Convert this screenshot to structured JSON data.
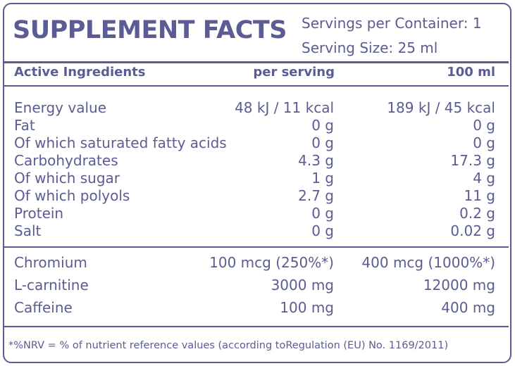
{
  "header": {
    "title": "SUPPLEMENT FACTS",
    "servings_per_container": "Servings per Container: 1",
    "serving_size": "Serving Size: 25 ml"
  },
  "table": {
    "columns": [
      "Active Ingredients",
      "per serving",
      "100 ml"
    ],
    "nutrition_rows": [
      [
        "Energy value",
        "48 kJ / 11 kcal",
        "189 kJ / 45 kcal"
      ],
      [
        "Fat",
        "0 g",
        "0 g"
      ],
      [
        "Of which saturated fatty acids",
        "0 g",
        "0 g"
      ],
      [
        "Carbohydrates",
        "4.3 g",
        "17.3 g"
      ],
      [
        "Of which sugar",
        "1 g",
        "4 g"
      ],
      [
        "Of which polyols",
        "2.7 g",
        "11 g"
      ],
      [
        "Protein",
        "0 g",
        "0.2 g"
      ],
      [
        "Salt",
        "0 g",
        "0.02 g"
      ]
    ],
    "active_rows": [
      [
        "Chromium",
        "100 mcg (250%*)",
        "400 mcg (1000%*)"
      ],
      [
        "L-carnitine",
        "3000 mg",
        "12000 mg"
      ],
      [
        "Caffeine",
        "100 mg",
        "400 mg"
      ]
    ]
  },
  "footer": "*%NRV = % of nutrient reference values (according toRegulation (EU) No. 1169/2011)"
}
